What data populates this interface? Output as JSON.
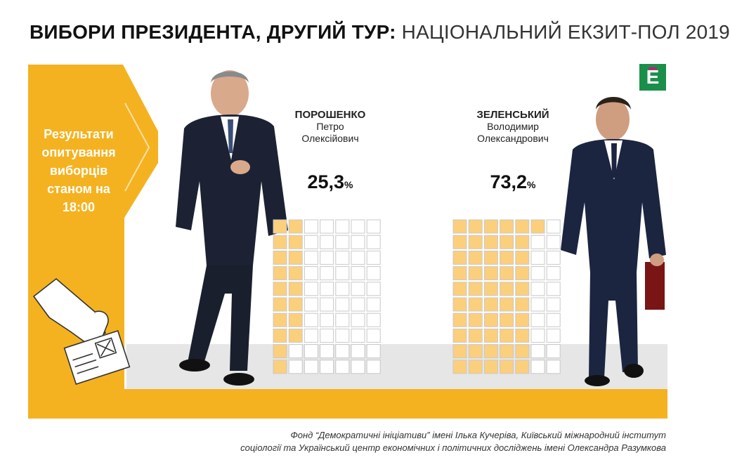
{
  "title": {
    "bold": "ВИБОРИ ПРЕЗИДЕНТА, ДРУГИЙ ТУР",
    "separator": ":",
    "light": "НАЦІОНАЛЬНИЙ ЕКЗИТ-ПОЛ 2019"
  },
  "panel": {
    "text": "Результати опитування виборців станом на 18:00"
  },
  "logo": {
    "letter": "Е"
  },
  "colors": {
    "accent": "#f5b220",
    "cell_fill": "#fbcf7c",
    "cell_empty": "#ffffff",
    "cell_border": "#c8c8c8",
    "floor": "#e6e6e6",
    "logo": "#1a8f4a"
  },
  "chart_data": {
    "type": "unit-grid",
    "grid": {
      "rows": 10,
      "cols": 7,
      "fill_order": "column-major"
    },
    "series": [
      {
        "surname": "ПОРОШЕНКО",
        "given": "Петро",
        "patronymic": "Олексійович",
        "value": 25.3,
        "label": "25,3",
        "unit": "%"
      },
      {
        "surname": "ЗЕЛЕНСЬКИЙ",
        "given": "Володимир",
        "patronymic": "Олександрович",
        "value": 73.2,
        "label": "73,2",
        "unit": "%"
      }
    ]
  },
  "source": {
    "line1": "Фонд “Демократичні ініціативи” імені Ілька Кучеріва, Київський міжнародний інститут",
    "line2": "соціології та Український центр економічних і політичних досліджень імені Олександра Разумкова"
  }
}
